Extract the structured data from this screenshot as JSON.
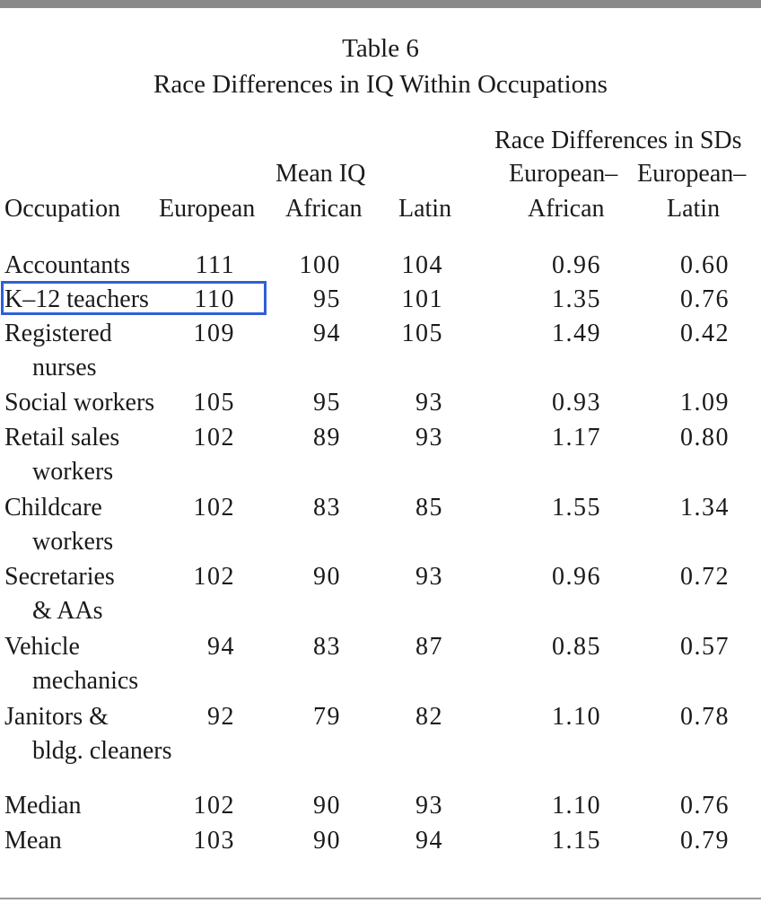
{
  "title": "Table 6",
  "subtitle": "Race Differences in IQ Within Occupations",
  "headers": {
    "race_diff_group": "Race Differences in SDs",
    "mean_iq_group": "Mean IQ",
    "european_african_top": "European–",
    "european_latin_top": "European–",
    "occupation": "Occupation",
    "european": "European",
    "african": "African",
    "latin": "Latin",
    "european_african_bottom": "African",
    "european_latin_bottom": "Latin"
  },
  "rows": [
    {
      "occupation": "Accountants",
      "occupation_cont": "",
      "european": "111",
      "african": "100",
      "latin": "104",
      "sd_african": "0.96",
      "sd_latin": "0.60"
    },
    {
      "occupation": "K–12 teachers",
      "occupation_cont": "",
      "european": "110",
      "african": "95",
      "latin": "101",
      "sd_african": "1.35",
      "sd_latin": "0.76"
    },
    {
      "occupation": "Registered",
      "occupation_cont": "nurses",
      "european": "109",
      "african": "94",
      "latin": "105",
      "sd_african": "1.49",
      "sd_latin": "0.42"
    },
    {
      "occupation": "Social workers",
      "occupation_cont": "",
      "european": "105",
      "african": "95",
      "latin": "93",
      "sd_african": "0.93",
      "sd_latin": "1.09"
    },
    {
      "occupation": "Retail sales",
      "occupation_cont": "workers",
      "european": "102",
      "african": "89",
      "latin": "93",
      "sd_african": "1.17",
      "sd_latin": "0.80"
    },
    {
      "occupation": "Childcare",
      "occupation_cont": "workers",
      "european": "102",
      "african": "83",
      "latin": "85",
      "sd_african": "1.55",
      "sd_latin": "1.34"
    },
    {
      "occupation": "Secretaries",
      "occupation_cont": "& AAs",
      "european": "102",
      "african": "90",
      "latin": "93",
      "sd_african": "0.96",
      "sd_latin": "0.72"
    },
    {
      "occupation": "Vehicle",
      "occupation_cont": "mechanics",
      "european": "94",
      "african": "83",
      "latin": "87",
      "sd_african": "0.85",
      "sd_latin": "0.57"
    },
    {
      "occupation": "Janitors &",
      "occupation_cont": "bldg. cleaners",
      "european": "92",
      "african": "79",
      "latin": "82",
      "sd_african": "1.10",
      "sd_latin": "0.78"
    }
  ],
  "summary": [
    {
      "occupation": "Median",
      "european": "102",
      "african": "90",
      "latin": "93",
      "sd_african": "1.10",
      "sd_latin": "0.76"
    },
    {
      "occupation": "Mean",
      "european": "103",
      "african": "90",
      "latin": "94",
      "sd_african": "1.15",
      "sd_latin": "0.79"
    }
  ],
  "highlight_color": "#2f5fd6"
}
